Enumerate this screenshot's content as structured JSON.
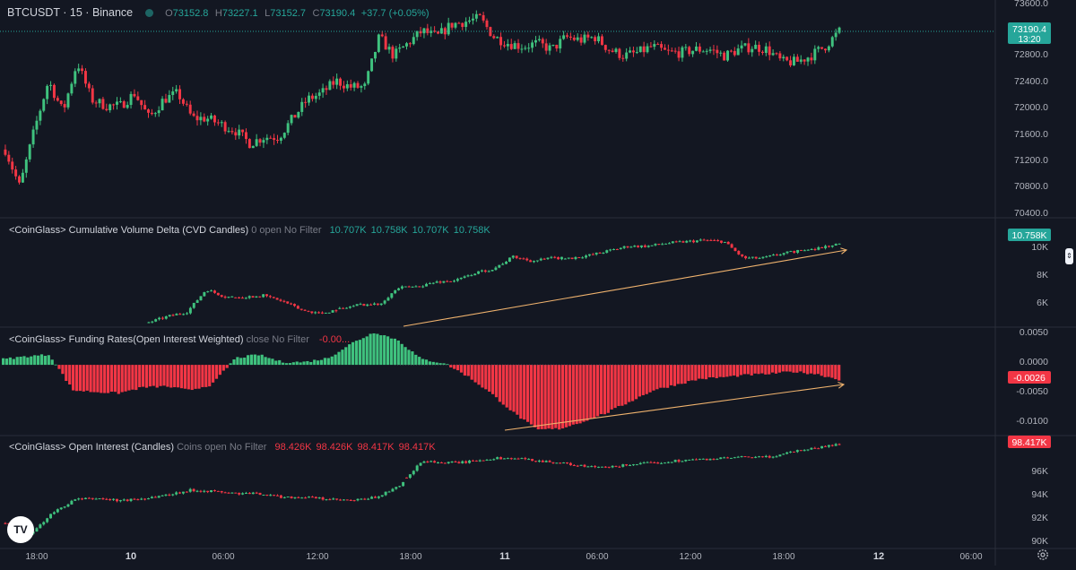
{
  "header": {
    "symbol": "BTCUSDT",
    "interval": "15",
    "exchange": "Binance",
    "o_label": "O",
    "o": "73152.8",
    "h_label": "H",
    "h": "73227.1",
    "l_label": "L",
    "l": "73152.7",
    "c_label": "C",
    "c": "73190.4",
    "change": "+37.7 (+0.05%)"
  },
  "colors": {
    "up": "#26a69a",
    "down": "#f23645",
    "bright_up": "#3fc27e",
    "bg": "#131722",
    "trend": "#f0b36e"
  },
  "logo": "TV",
  "settings_icon": "gear-icon",
  "scroll_handle_icon": "chevron-updown-icon",
  "chart_data": [
    {
      "type": "candlestick",
      "name": "BTCUSDT · 15 · Binance",
      "y_ticks": [
        "73600.0",
        "72800.0",
        "72400.0",
        "72000.0",
        "71600.0",
        "71200.0",
        "70800.0",
        "70400.0"
      ],
      "ylim": [
        70250,
        73650
      ],
      "last_price": "73190.4",
      "countdown": "13:20",
      "anchor_y": [
        71300,
        70700,
        71600,
        72400,
        71900,
        72700,
        72100,
        72000,
        72000,
        72200,
        71800,
        72100,
        72200,
        71800,
        71800,
        71700,
        71600,
        71400,
        71500,
        71500,
        71800,
        72100,
        72200,
        72400,
        72300,
        72300,
        73100,
        72800,
        73000,
        73200,
        73100,
        73300,
        73350,
        73400,
        73100,
        73000,
        72950,
        73000,
        72900,
        73100,
        73050,
        73100,
        72900,
        72800,
        72850,
        72950,
        72850,
        72850,
        72900,
        72900,
        72800,
        72900,
        72950,
        72900,
        72700,
        72700,
        72800,
        72950,
        73190
      ]
    },
    {
      "type": "candlestick",
      "name": "<CoinGlass> Cumulative Volume Delta (CVD Candles)",
      "params": "0 open No Filter",
      "values": [
        "10.707K",
        "10.758K",
        "10.707K",
        "10.758K"
      ],
      "y_ticks": [
        "10K",
        "8K",
        "6K"
      ],
      "ylim": [
        5300,
        11600
      ],
      "last_value": "10.758K",
      "anchor_y": [
        5500,
        5900,
        6200,
        7700,
        7200,
        7200,
        7300,
        6900,
        6300,
        6100,
        6400,
        6700,
        6700,
        7800,
        7900,
        8200,
        8300,
        8800,
        9100,
        9900,
        9600,
        9800,
        9800,
        10000,
        10300,
        10600,
        10600,
        10800,
        10900,
        11000,
        10900,
        9800,
        9800,
        10100,
        10300,
        10500,
        10750
      ]
    },
    {
      "type": "bar",
      "name": "<CoinGlass> Funding Rates(Open Interest Weighted)",
      "params": "close No Filter",
      "value_label": "-0.00...",
      "y_ticks": [
        "0.0050",
        "0.0000",
        "-0.0050",
        "-0.0100"
      ],
      "ylim": [
        -0.0122,
        0.0062
      ],
      "last_value": "-0.0026",
      "anchor_y": [
        0.001,
        0.0015,
        0.0018,
        -0.0045,
        -0.0048,
        -0.005,
        -0.004,
        -0.0038,
        -0.0045,
        -0.0035,
        0.0012,
        0.0018,
        0.0005,
        0.0005,
        0.0012,
        0.0038,
        0.0058,
        0.0044,
        0.001,
        0.0003,
        -0.002,
        -0.005,
        -0.0085,
        -0.0115,
        -0.0113,
        -0.01,
        -0.0085,
        -0.0065,
        -0.0045,
        -0.0035,
        -0.0025,
        -0.0022,
        -0.0018,
        -0.0016,
        -0.0012,
        -0.0016,
        -0.0026
      ]
    },
    {
      "type": "candlestick",
      "name": "<CoinGlass> Open Interest (Candles)",
      "params": "Coins open No Filter",
      "values": [
        "98.426K",
        "98.426K",
        "98.417K",
        "98.417K"
      ],
      "y_ticks": [
        "96K",
        "94K",
        "92K",
        "90K"
      ],
      "ylim": [
        89700,
        98900
      ],
      "last_value": "98.417K",
      "anchor_y": [
        91700,
        90600,
        92500,
        93700,
        93800,
        93600,
        93800,
        94100,
        94500,
        94400,
        94200,
        94200,
        93900,
        93900,
        93700,
        93600,
        93900,
        94800,
        97000,
        96800,
        96900,
        97200,
        97200,
        97000,
        96800,
        96500,
        96400,
        96700,
        96800,
        97000,
        97100,
        97200,
        97300,
        97300,
        97800,
        98100,
        98400
      ]
    }
  ],
  "x_axis": {
    "labels": [
      "18:00",
      "10",
      "06:00",
      "12:00",
      "18:00",
      "11",
      "06:00",
      "12:00",
      "18:00",
      "12",
      "06:00"
    ],
    "major": [
      "10",
      "11",
      "12"
    ]
  }
}
